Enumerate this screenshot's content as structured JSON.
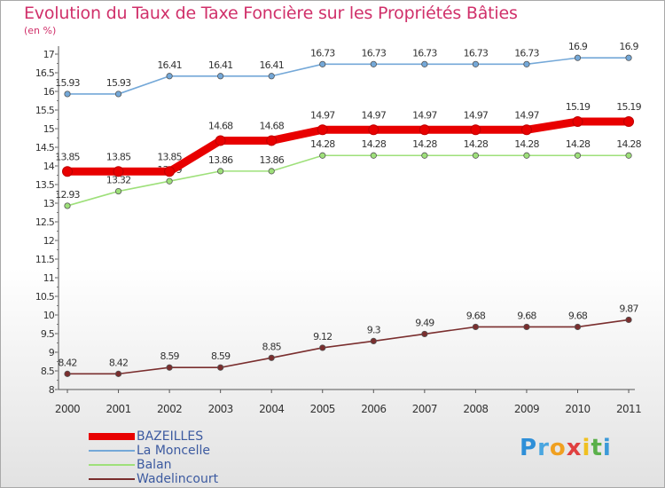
{
  "title": "Evolution du Taux de Taxe Foncière sur les Propriétés Bâties",
  "subtitle": "(en %)",
  "logo": {
    "letters": [
      "P",
      "r",
      "o",
      "x",
      "i",
      "t",
      "i"
    ],
    "colors": [
      "#2e8fd8",
      "#4aa6e0",
      "#f0a020",
      "#e04040",
      "#f0c020",
      "#5ab04a",
      "#3c9ad8"
    ]
  },
  "chart_data": {
    "type": "line",
    "x": [
      "2000",
      "2001",
      "2002",
      "2003",
      "2004",
      "2005",
      "2006",
      "2007",
      "2008",
      "2009",
      "2010",
      "2011"
    ],
    "ylim": [
      8,
      17
    ],
    "yticks": [
      "8",
      "8.5",
      "9",
      "9.5",
      "10",
      "10.5",
      "11",
      "11.5",
      "12",
      "12.5",
      "13",
      "13.5",
      "14",
      "14.5",
      "15",
      "15.5",
      "16",
      "16.5",
      "17"
    ],
    "grid": false,
    "legend": "bottom-left",
    "series": [
      {
        "name": "BAZEILLES",
        "color": "#e80000",
        "values": [
          13.85,
          13.85,
          13.85,
          14.68,
          14.68,
          14.97,
          14.97,
          14.97,
          14.97,
          14.97,
          15.19,
          15.19
        ],
        "labels": [
          "13.85",
          "13.85",
          "13.85",
          "14.68",
          "14.68",
          "14.97",
          "14.97",
          "14.97",
          "14.97",
          "14.97",
          "15.19",
          "15.19"
        ]
      },
      {
        "name": "La Moncelle",
        "color": "#74a8d8",
        "values": [
          15.93,
          15.93,
          16.41,
          16.41,
          16.41,
          16.73,
          16.73,
          16.73,
          16.73,
          16.73,
          16.9,
          16.9
        ],
        "labels": [
          "15.93",
          "15.93",
          "16.41",
          "16.41",
          "16.41",
          "16.73",
          "16.73",
          "16.73",
          "16.73",
          "16.73",
          "16.9",
          "16.9"
        ]
      },
      {
        "name": "Balan",
        "color": "#9ee07a",
        "values": [
          12.93,
          13.32,
          13.59,
          13.86,
          13.86,
          14.28,
          14.28,
          14.28,
          14.28,
          14.28,
          14.28,
          14.28
        ],
        "labels": [
          "12.93",
          "13.32",
          "13.59",
          "13.86",
          "13.86",
          "14.28",
          "14.28",
          "14.28",
          "14.28",
          "14.28",
          "14.28",
          "14.28"
        ]
      },
      {
        "name": "Wadelincourt",
        "color": "#7a2e2e",
        "values": [
          8.42,
          8.42,
          8.59,
          8.59,
          8.85,
          9.12,
          9.3,
          9.49,
          9.68,
          9.68,
          9.68,
          9.87
        ],
        "labels": [
          "8.42",
          "8.42",
          "8.59",
          "8.59",
          "8.85",
          "9.12",
          "9.3",
          "9.49",
          "9.68",
          "9.68",
          "9.68",
          "9.87"
        ]
      }
    ]
  }
}
